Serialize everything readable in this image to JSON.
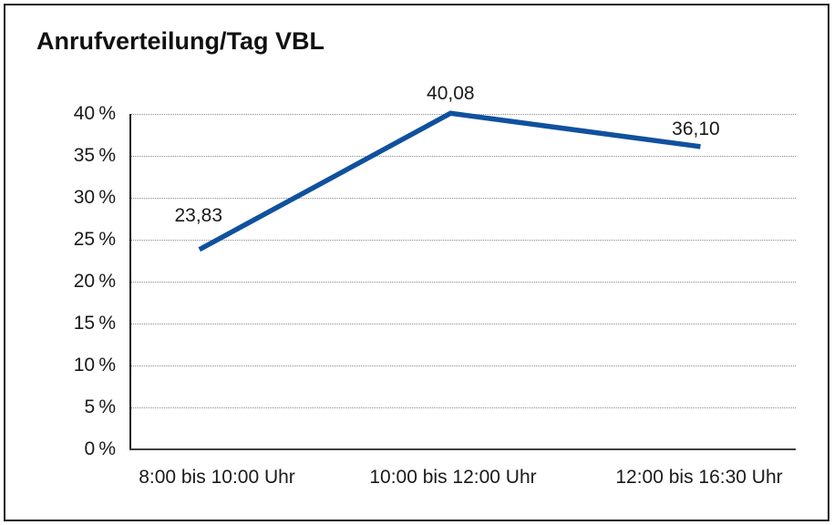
{
  "frame": {
    "background": "#ffffff",
    "border_color": "#1a1a1a"
  },
  "chart_data": {
    "type": "line",
    "title": "Anrufverteilung/Tag VBL",
    "categories": [
      "8:00 bis 10:00 Uhr",
      "10:00 bis 12:00 Uhr",
      "12:00 bis 16:30 Uhr"
    ],
    "series": [
      {
        "name": "Anrufverteilung/Tag VBL",
        "values": [
          23.83,
          40.08,
          36.1
        ]
      }
    ],
    "point_labels": [
      "23,83",
      "40,08",
      "36,10"
    ],
    "yticks": [
      0,
      5,
      10,
      15,
      20,
      25,
      30,
      35,
      40
    ],
    "ytick_labels": [
      "0 %",
      "5 %",
      "10 %",
      "15 %",
      "20 %",
      "25 %",
      "30 %",
      "35 %",
      "40 %"
    ],
    "ylim": [
      0,
      40
    ],
    "xlabel": "",
    "ylabel": "",
    "grid": "horizontal-dotted",
    "legend": "none",
    "line_color": "#10519e",
    "text_color": "#1a1a1a",
    "gridline_color": "#8a8a8a"
  }
}
